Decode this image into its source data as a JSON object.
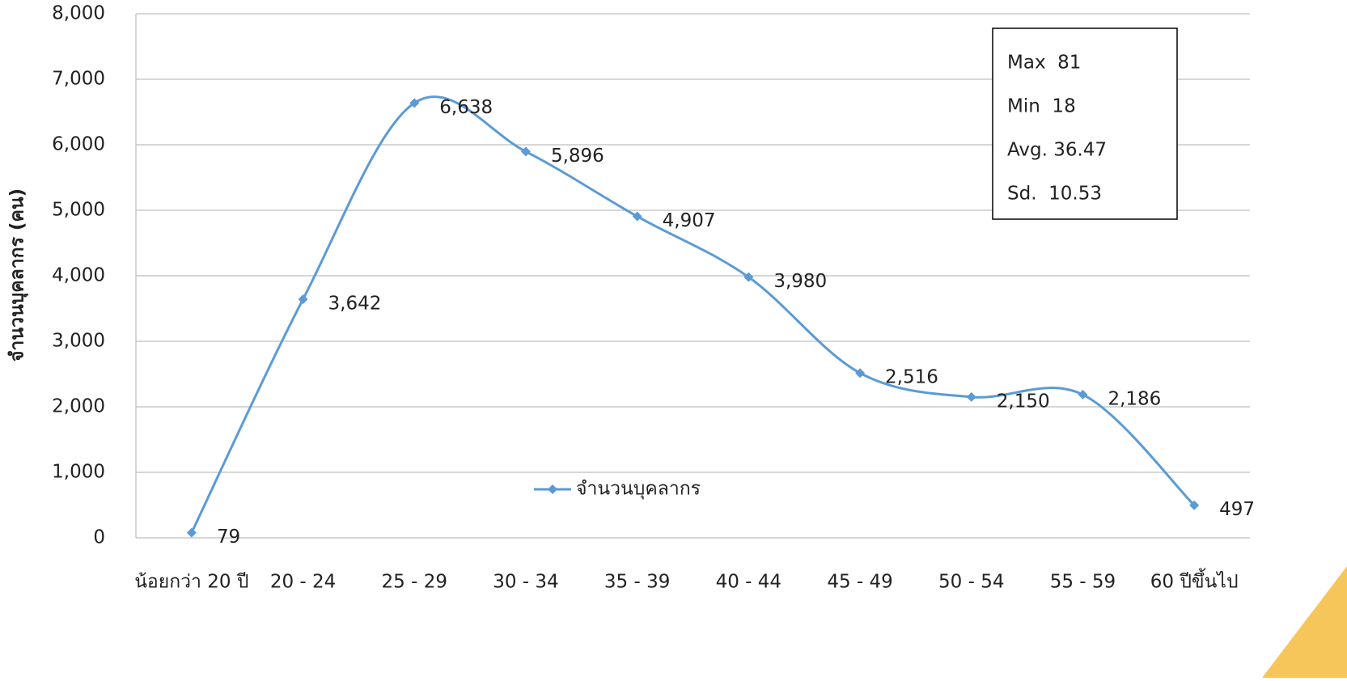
{
  "chart_data": {
    "type": "line",
    "y_label": "จำนวนบุคลากร (คน)",
    "categories": [
      "น้อยกว่า 20 ปี",
      "20 - 24",
      "25 - 29",
      "30 - 34",
      "35 - 39",
      "40 - 44",
      "45 - 49",
      "50 - 54",
      "55 - 59",
      "60 ปีขึ้นไป"
    ],
    "series": [
      {
        "name": "จำนวนบุคลากร",
        "color": "#5b9bd5",
        "values": [
          79,
          3642,
          6638,
          5896,
          4907,
          3980,
          2516,
          2150,
          2186,
          497
        ],
        "value_labels": [
          "79",
          "3,642",
          "6,638",
          "5,896",
          "4,907",
          "3,980",
          "2,516",
          "2,150",
          "2,186",
          "497"
        ]
      }
    ],
    "ylim": [
      0,
      8000
    ],
    "yticks": [
      0,
      {
        "value": 1000,
        "label": "1,000"
      },
      {
        "value": 2000,
        "label": "2,000"
      },
      {
        "value": 3000,
        "label": "3,000"
      },
      {
        "value": 4000,
        "label": "4,000"
      },
      {
        "value": 5000,
        "label": "5,000"
      },
      {
        "value": 6000,
        "label": "6,000"
      },
      {
        "value": 7000,
        "label": "7,000"
      },
      {
        "value": 8000,
        "label": "8,000"
      }
    ],
    "grid": true,
    "smooth": true,
    "legend": "center",
    "annotations": [
      "Max  81",
      "Min  18",
      "Avg. 36.47",
      "Sd.  10.53"
    ]
  }
}
